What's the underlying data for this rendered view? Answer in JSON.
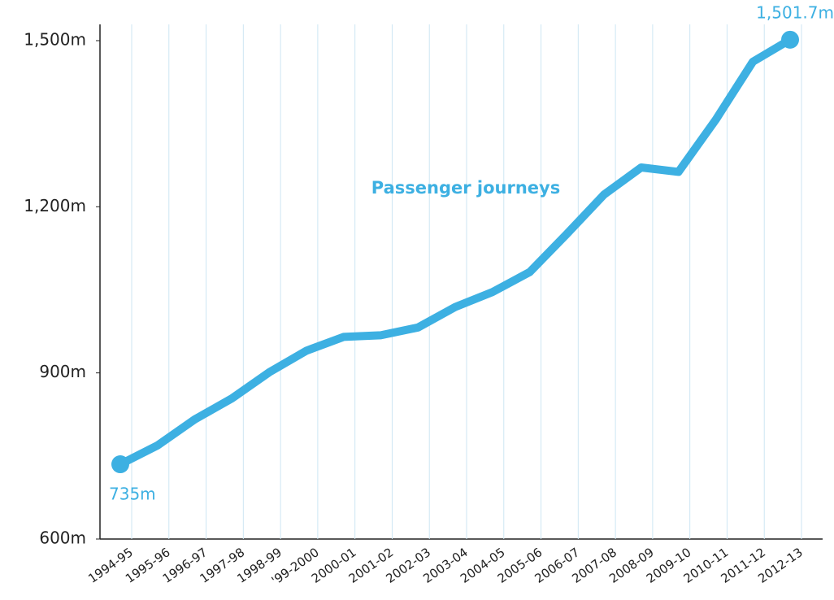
{
  "chart_data": {
    "type": "line",
    "categories": [
      "1994-95",
      "1995-96",
      "1996-97",
      "1997-98",
      "1998-99",
      "'99-2000",
      "2000-01",
      "2001-02",
      "2002-03",
      "2003-04",
      "2004-05",
      "2005-06",
      "2006-07",
      "2007-08",
      "2008-09",
      "2009-10",
      "2010-11",
      "2011-12",
      "2012-13"
    ],
    "series": [
      {
        "name": "Passenger journeys",
        "color": "#3db0e2",
        "values": [
          735,
          769,
          816,
          854,
          901,
          940,
          965,
          968,
          982,
          1019,
          1046,
          1082,
          1151,
          1222,
          1271,
          1263,
          1357,
          1462,
          1501.7
        ],
        "value_labels": [
          "735m",
          null,
          null,
          null,
          null,
          null,
          null,
          null,
          null,
          null,
          null,
          null,
          null,
          null,
          null,
          null,
          null,
          null,
          "1,501.7m"
        ]
      }
    ],
    "ylim": [
      600,
      1500
    ],
    "yticks": [
      {
        "value": 600,
        "label": "600m"
      },
      {
        "value": 900,
        "label": "900m"
      },
      {
        "value": 1200,
        "label": "1,200m"
      },
      {
        "value": 1500,
        "label": "1,500m"
      }
    ],
    "grid": true
  }
}
